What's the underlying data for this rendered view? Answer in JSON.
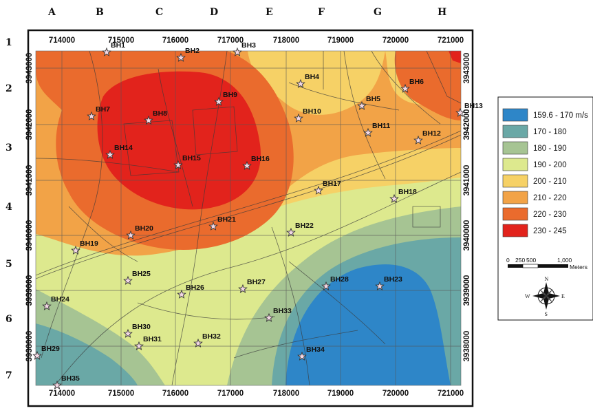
{
  "grid": {
    "columns": [
      "A",
      "B",
      "C",
      "D",
      "E",
      "F",
      "G",
      "H"
    ],
    "rows": [
      "1",
      "2",
      "3",
      "4",
      "5",
      "6",
      "7"
    ]
  },
  "axes": {
    "x_ticks": [
      "714000",
      "715000",
      "716000",
      "717000",
      "718000",
      "719000",
      "720000",
      "721000"
    ],
    "y_ticks": [
      "3943000",
      "3942000",
      "3941000",
      "3940000",
      "3939000",
      "3938000"
    ]
  },
  "legend": {
    "items": [
      {
        "label": "159.6 - 170 m/s",
        "color": "#2e86c8"
      },
      {
        "label": "170 - 180",
        "color": "#6aa8a6"
      },
      {
        "label": "180 - 190",
        "color": "#a6c493"
      },
      {
        "label": "190 - 200",
        "color": "#dde98e"
      },
      {
        "label": "200 - 210",
        "color": "#f6d166"
      },
      {
        "label": "210 - 220",
        "color": "#f2a347"
      },
      {
        "label": "220 - 230",
        "color": "#ea6b2d"
      },
      {
        "label": "230 - 245",
        "color": "#e2231c"
      }
    ]
  },
  "scale": {
    "labels": [
      "0",
      "250",
      "500",
      "1,000"
    ],
    "unit": "Meters"
  },
  "compass": {
    "n": "N",
    "s": "S",
    "e": "E",
    "w": "W"
  },
  "boreholes": [
    {
      "id": "BH1"
    },
    {
      "id": "BH2"
    },
    {
      "id": "BH3"
    },
    {
      "id": "BH4"
    },
    {
      "id": "BH5"
    },
    {
      "id": "BH6"
    },
    {
      "id": "BH7"
    },
    {
      "id": "BH8"
    },
    {
      "id": "BH9"
    },
    {
      "id": "BH10"
    },
    {
      "id": "BH11"
    },
    {
      "id": "BH12"
    },
    {
      "id": "BH13"
    },
    {
      "id": "BH14"
    },
    {
      "id": "BH15"
    },
    {
      "id": "BH16"
    },
    {
      "id": "BH17"
    },
    {
      "id": "BH18"
    },
    {
      "id": "BH19"
    },
    {
      "id": "BH20"
    },
    {
      "id": "BH21"
    },
    {
      "id": "BH22"
    },
    {
      "id": "BH23"
    },
    {
      "id": "BH24"
    },
    {
      "id": "BH25"
    },
    {
      "id": "BH26"
    },
    {
      "id": "BH27"
    },
    {
      "id": "BH28"
    },
    {
      "id": "BH29"
    },
    {
      "id": "BH30"
    },
    {
      "id": "BH31"
    },
    {
      "id": "BH32"
    },
    {
      "id": "BH33"
    },
    {
      "id": "BH34"
    },
    {
      "id": "BH35"
    }
  ]
}
